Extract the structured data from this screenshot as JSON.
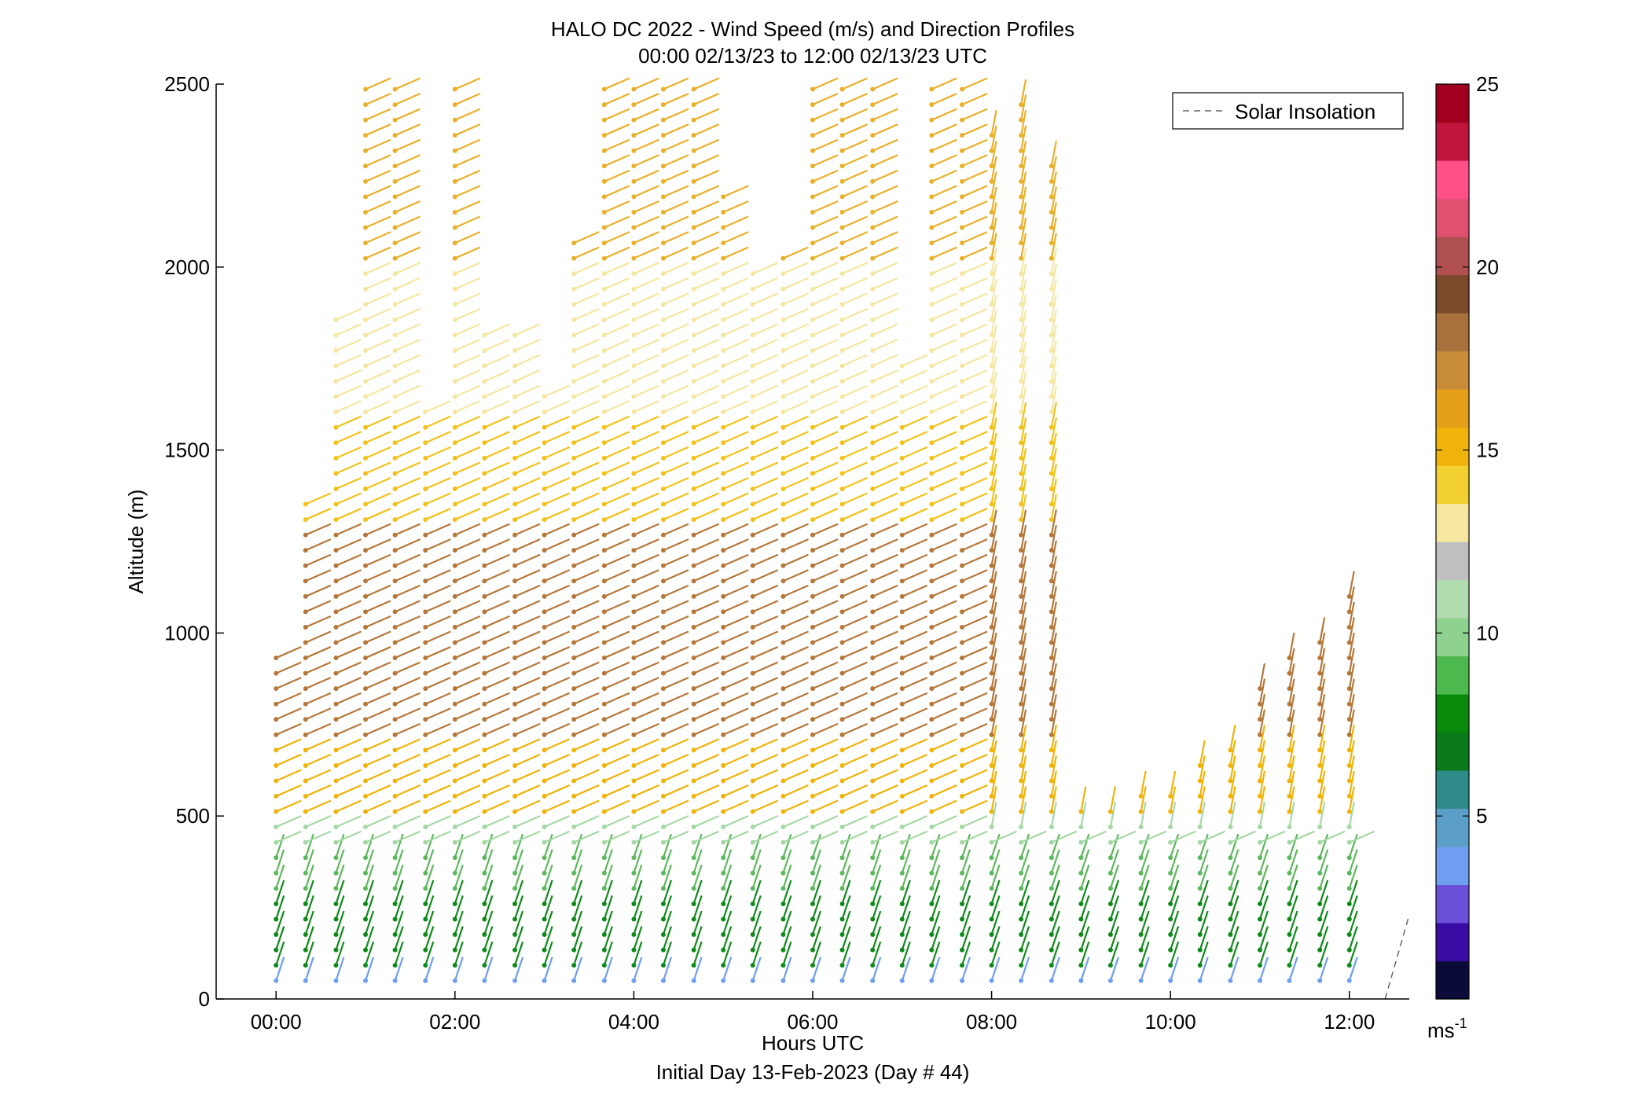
{
  "chart_data": {
    "type": "wind-barb-profile",
    "title": "HALO DC 2022 - Wind Speed (m/s) and Direction Profiles",
    "subtitle": "00:00 02/13/23 to 12:00 02/13/23  UTC",
    "xlabel": "Hours UTC",
    "xlabel2": "Initial Day 13-Feb-2023 (Day # 44)",
    "ylabel": "Altitude (m)",
    "xlim": [
      -0.67,
      12.67
    ],
    "ylim": [
      0,
      2500
    ],
    "x_ticks": [
      {
        "value": 0,
        "label": "00:00"
      },
      {
        "value": 2,
        "label": "02:00"
      },
      {
        "value": 4,
        "label": "04:00"
      },
      {
        "value": 6,
        "label": "06:00"
      },
      {
        "value": 8,
        "label": "08:00"
      },
      {
        "value": 10,
        "label": "10:00"
      },
      {
        "value": 12,
        "label": "12:00"
      }
    ],
    "y_ticks": [
      {
        "value": 0,
        "label": "0"
      },
      {
        "value": 500,
        "label": "500"
      },
      {
        "value": 1000,
        "label": "1000"
      },
      {
        "value": 1500,
        "label": "1500"
      },
      {
        "value": 2000,
        "label": "2000"
      },
      {
        "value": 2500,
        "label": "2500"
      }
    ],
    "grid": false,
    "legend": {
      "position": "top-right",
      "entries": [
        "Solar Insolation"
      ]
    },
    "colorbar": {
      "min": 0,
      "max": 25,
      "ticks": [
        {
          "value": 5,
          "label": "5"
        },
        {
          "value": 10,
          "label": "10"
        },
        {
          "value": 15,
          "label": "15"
        },
        {
          "value": 20,
          "label": "20"
        },
        {
          "value": 25,
          "label": "25"
        }
      ],
      "unit": "ms",
      "unit_exp": "-1",
      "colors": [
        "#0b0b3a",
        "#3a0ca3",
        "#6b4fd8",
        "#6f9ef0",
        "#5b9ec8",
        "#2f8a8a",
        "#0b7a1a",
        "#0a8a0a",
        "#4db84d",
        "#8fd28f",
        "#b0dcb0",
        "#c0c0c0",
        "#f5e6a0",
        "#f2d030",
        "#f0b30a",
        "#e59f1a",
        "#c98d3a",
        "#a8703a",
        "#7a4a2a",
        "#b05050",
        "#e05070",
        "#ff4f87",
        "#c0143c",
        "#a0001e"
      ]
    },
    "solar_insolation": {
      "x": [
        12.4,
        12.67
      ],
      "y": [
        0,
        230
      ]
    },
    "profiles": [
      {
        "t": 0.0,
        "top": 950
      },
      {
        "t": 0.33,
        "top": 1370
      },
      {
        "t": 0.67,
        "top": 1880
      },
      {
        "t": 1.0,
        "top": 2500
      },
      {
        "t": 1.33,
        "top": 2500
      },
      {
        "t": 1.67,
        "top": 1620
      },
      {
        "t": 2.0,
        "top": 2500
      },
      {
        "t": 2.33,
        "top": 1820
      },
      {
        "t": 2.67,
        "top": 1840
      },
      {
        "t": 3.0,
        "top": 1680
      },
      {
        "t": 3.33,
        "top": 2080
      },
      {
        "t": 3.67,
        "top": 2500
      },
      {
        "t": 4.0,
        "top": 2500
      },
      {
        "t": 4.33,
        "top": 2500
      },
      {
        "t": 4.67,
        "top": 2500
      },
      {
        "t": 5.0,
        "top": 2200
      },
      {
        "t": 5.33,
        "top": 2000
      },
      {
        "t": 5.67,
        "top": 2050
      },
      {
        "t": 6.0,
        "top": 2500
      },
      {
        "t": 6.33,
        "top": 2500
      },
      {
        "t": 6.67,
        "top": 2500
      },
      {
        "t": 7.0,
        "top": 1740
      },
      {
        "t": 7.33,
        "top": 2500
      },
      {
        "t": 7.67,
        "top": 2500
      },
      {
        "t": 8.0,
        "top": 2400
      },
      {
        "t": 8.33,
        "top": 2450
      },
      {
        "t": 8.67,
        "top": 2300
      },
      {
        "t": 9.0,
        "top": 520
      },
      {
        "t": 9.33,
        "top": 540
      },
      {
        "t": 9.67,
        "top": 570
      },
      {
        "t": 10.0,
        "top": 580
      },
      {
        "t": 10.33,
        "top": 640
      },
      {
        "t": 10.67,
        "top": 700
      },
      {
        "t": 11.0,
        "top": 850
      },
      {
        "t": 11.33,
        "top": 940
      },
      {
        "t": 11.67,
        "top": 1000
      },
      {
        "t": 12.0,
        "top": 1100
      }
    ]
  }
}
